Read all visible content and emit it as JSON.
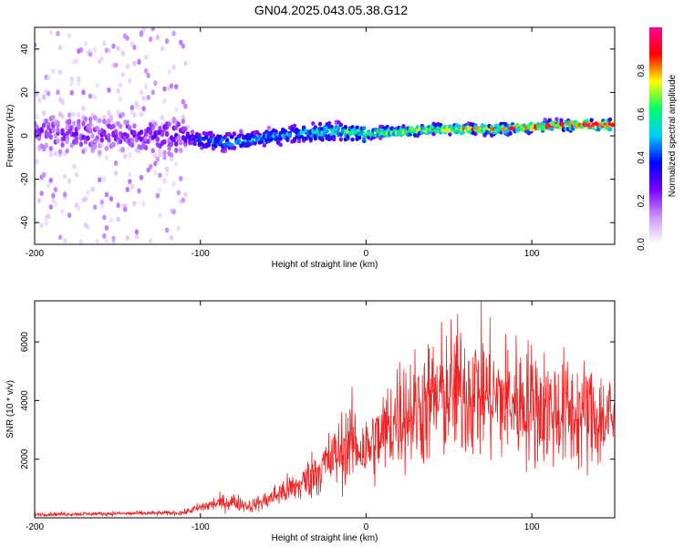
{
  "figure": {
    "title": "GN04.2025.043.05.38.G12"
  },
  "chart_data": [
    {
      "type": "heatmap",
      "xlabel": "Height of straight line (km)",
      "ylabel": "Frequency (Hz)",
      "xlim": [
        -200,
        150
      ],
      "ylim": [
        -50,
        50
      ],
      "x_ticks": [
        -200,
        -100,
        0,
        100
      ],
      "y_ticks": [
        -40,
        -20,
        0,
        20,
        40
      ],
      "colorbar": {
        "label": "Normalized spectral amplitude",
        "range": [
          0,
          1
        ],
        "ticks": [
          0.0,
          0.2,
          0.4,
          0.6,
          0.8
        ],
        "tick_labels": [
          "0.0",
          "0.2",
          "0.4",
          "0.6",
          "0.8"
        ],
        "colors": [
          "#ffffff",
          "#cc99ff",
          "#7a00ff",
          "#0000ff",
          "#00ccff",
          "#00ff66",
          "#ffff00",
          "#ff0000",
          "#ff0099"
        ]
      },
      "ridge": {
        "x": [
          -200,
          -150,
          -110,
          -100,
          -80,
          -60,
          -40,
          -20,
          0,
          20,
          40,
          60,
          80,
          100,
          120,
          150
        ],
        "frequency_hz": [
          1,
          1,
          0,
          -2,
          -3,
          -1,
          1,
          2,
          1,
          2,
          3,
          3,
          3,
          4,
          5,
          5
        ],
        "peak_amplitude": [
          0.25,
          0.25,
          0.3,
          0.45,
          0.5,
          0.5,
          0.55,
          0.6,
          0.7,
          0.75,
          0.8,
          0.85,
          0.85,
          0.9,
          0.95,
          0.95
        ]
      },
      "grid": false
    },
    {
      "type": "line",
      "xlabel": "Height of straight line (km)",
      "ylabel": "SNR (10 * v/v)",
      "xlim": [
        -200,
        150
      ],
      "ylim": [
        0,
        7400
      ],
      "x_ticks": [
        -200,
        -100,
        0,
        100
      ],
      "y_ticks": [
        2000,
        4000,
        6000
      ],
      "color": "#ee2222",
      "series": [
        {
          "x": [
            -200,
            -180,
            -160,
            -140,
            -120,
            -110,
            -100,
            -90,
            -80,
            -70,
            -60,
            -50,
            -40,
            -30,
            -20,
            -10,
            0,
            10,
            20,
            30,
            40,
            50,
            60,
            70,
            80,
            90,
            100,
            110,
            120,
            130,
            140,
            150
          ],
          "values": [
            120,
            130,
            140,
            150,
            160,
            180,
            350,
            500,
            550,
            400,
            600,
            900,
            1100,
            1600,
            2000,
            2600,
            2300,
            2800,
            3600,
            3700,
            4000,
            4300,
            4400,
            4300,
            4000,
            4000,
            3900,
            3700,
            3600,
            3500,
            3400,
            3300
          ]
        }
      ],
      "grid": false
    }
  ]
}
